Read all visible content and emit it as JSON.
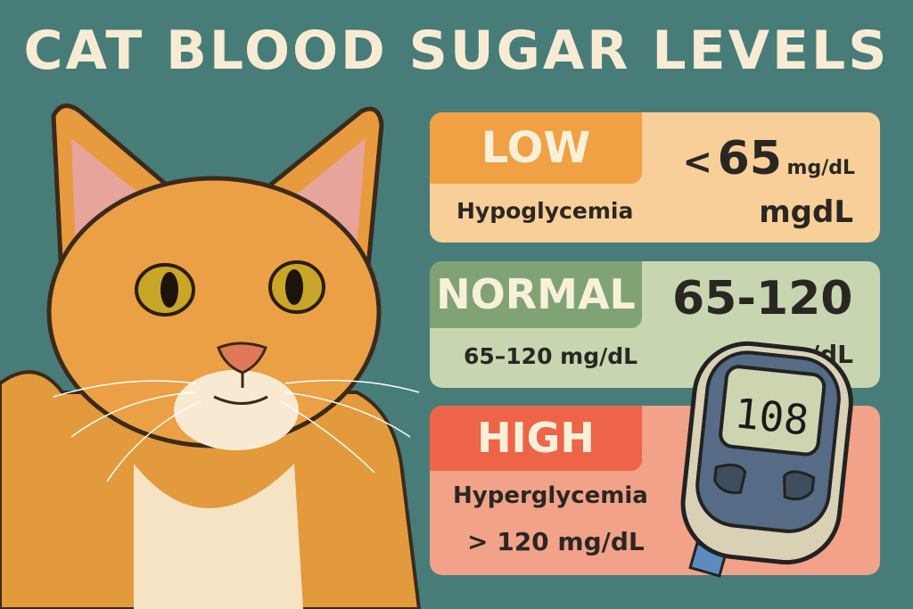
{
  "title": "CAT BLOOD SUGAR LEVELS",
  "colors": {
    "background": "#487c78",
    "low": "#f0a144",
    "low_bg": "#f8cf98",
    "normal": "#7fa375",
    "normal_bg": "#c7d6b0",
    "high": "#ee6448",
    "high_bg": "#f2a288"
  },
  "panels": {
    "low": {
      "label": "LOW",
      "condition": "Hypoglycemia",
      "value_op": "<",
      "value_num": "65",
      "value_unit": "mg/dL",
      "extra": "mgdL"
    },
    "normal": {
      "label": "NORMAL",
      "range_big": "65-120",
      "range_text": "65–120 mg/dL",
      "extra": "/dL"
    },
    "high": {
      "label": "HIGH",
      "condition": "Hyperglycemia",
      "range_text": "> 120 mg/dL"
    }
  },
  "meter": {
    "reading": "108"
  }
}
